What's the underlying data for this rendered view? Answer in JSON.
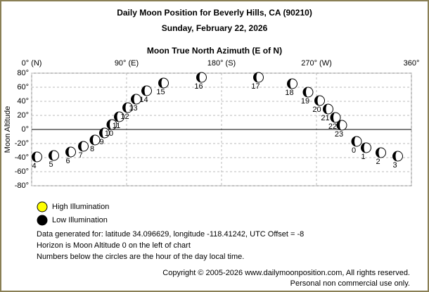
{
  "chart_data": {
    "type": "scatter",
    "title": "Daily Moon Position for Beverly Hills, CA (90210)",
    "subtitle": "Sunday, February 22, 2026",
    "x_label": "Moon True North Azimuth (E of N)",
    "y_label": "Moon Altitude",
    "xlim": [
      0,
      360
    ],
    "ylim": [
      -80,
      80
    ],
    "xticks": [
      {
        "value": 0,
        "label": "0° (N)"
      },
      {
        "value": 90,
        "label": "90° (E)"
      },
      {
        "value": 180,
        "label": "180° (S)"
      },
      {
        "value": 270,
        "label": "270° (W)"
      },
      {
        "value": 360,
        "label": "360°"
      }
    ],
    "yticks": [
      {
        "value": 80,
        "label": "80°"
      },
      {
        "value": 60,
        "label": "60°"
      },
      {
        "value": 40,
        "label": "40°"
      },
      {
        "value": 20,
        "label": "20°"
      },
      {
        "value": 0,
        "label": "0°"
      },
      {
        "value": -20,
        "label": "-20°"
      },
      {
        "value": -40,
        "label": "-40°"
      },
      {
        "value": -60,
        "label": "-60°"
      },
      {
        "value": -80,
        "label": "-80°"
      }
    ],
    "grid": true,
    "series": [
      {
        "name": "Low Illumination",
        "color": "#000000",
        "labels": [
          "0",
          "1",
          "2",
          "3",
          "4",
          "5",
          "6",
          "7",
          "8",
          "9",
          "10",
          "11",
          "12",
          "13",
          "14",
          "15",
          "16",
          "17",
          "18",
          "19",
          "20",
          "21",
          "22",
          "23"
        ],
        "x": [
          308,
          317,
          331,
          347,
          5,
          21,
          37,
          49,
          60,
          69,
          76,
          83,
          91,
          99,
          109,
          125,
          161,
          215,
          247,
          262,
          273,
          281,
          288,
          294
        ],
        "y": [
          -17,
          -26,
          -33,
          -38,
          -39,
          -37,
          -32,
          -24,
          -15,
          -5,
          7,
          18,
          31,
          43,
          55,
          66,
          74,
          74,
          65,
          53,
          41,
          29,
          17,
          6
        ]
      }
    ],
    "legend": [
      {
        "name": "High Illumination",
        "color": "#ffff00"
      },
      {
        "name": "Low Illumination",
        "color": "#000000"
      }
    ],
    "notes": [
      "Data generated for: latitude 34.096629, longitude -118.41242, UTC Offset = -8",
      "Horizon is Moon Altitude 0 on the left of chart",
      "Numbers below the circles are the hour of the day local time."
    ],
    "copyright": [
      "Copyright © 2005-2026 www.dailymoonposition.com, All rights reserved.",
      "Personal non commercial use only."
    ]
  }
}
